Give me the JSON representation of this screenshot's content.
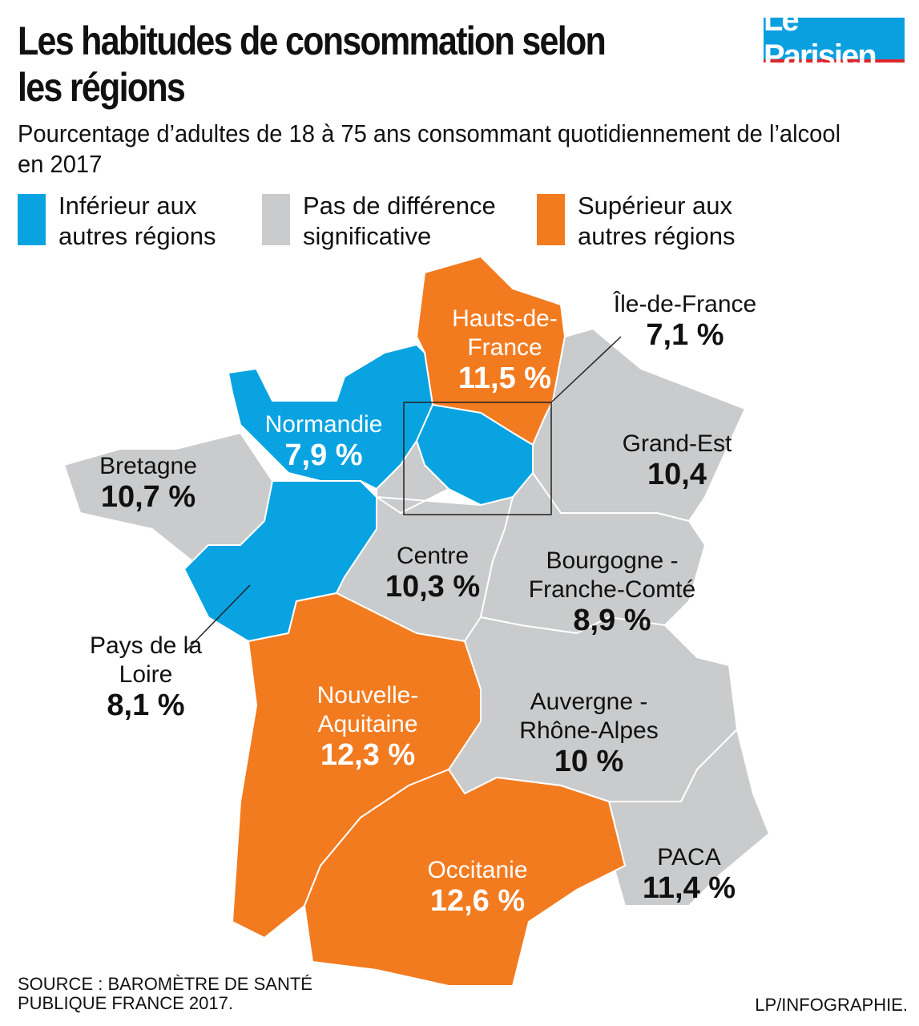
{
  "title": "Les habitudes de consommation selon les régions",
  "subtitle": "Pourcentage d’adultes de 18 à 75 ans consommant quotidiennement de l’alcool en 2017",
  "logo": "Le Parisien",
  "colors": {
    "lower": "#0aa3e2",
    "nodiff": "#cacbcc",
    "higher": "#f27b20"
  },
  "legend": [
    {
      "label": "Inférieur aux autres régions",
      "category": "lower"
    },
    {
      "label": "Pas de différence significative",
      "category": "nodiff"
    },
    {
      "label": "Supérieur aux autres régions",
      "category": "higher"
    }
  ],
  "regions": [
    {
      "name": "Hauts-de-France",
      "value": "11,5 %",
      "category": "higher"
    },
    {
      "name": "Île-de-France",
      "value": "7,1 %",
      "category": "lower"
    },
    {
      "name": "Normandie",
      "value": "7,9 %",
      "category": "lower"
    },
    {
      "name": "Bretagne",
      "value": "10,7 %",
      "category": "nodiff"
    },
    {
      "name": "Grand-Est",
      "value": "10,4",
      "category": "nodiff"
    },
    {
      "name": "Centre",
      "value": "10,3 %",
      "category": "nodiff"
    },
    {
      "name": "Bourgogne - Franche-Comté",
      "value": "8,9 %",
      "category": "nodiff"
    },
    {
      "name": "Pays de la Loire",
      "value": "8,1 %",
      "category": "lower"
    },
    {
      "name": "Nouvelle-Aquitaine",
      "value": "12,3 %",
      "category": "higher"
    },
    {
      "name": "Auvergne - Rhône-Alpes",
      "value": "10 %",
      "category": "nodiff"
    },
    {
      "name": "Occitanie",
      "value": "12,6 %",
      "category": "higher"
    },
    {
      "name": "PACA",
      "value": "11,4 %",
      "category": "nodiff"
    }
  ],
  "source": "SOURCE : BAROMÈTRE DE SANTÉ PUBLIQUE FRANCE 2017.",
  "credit": "LP/INFOGRAPHIE."
}
